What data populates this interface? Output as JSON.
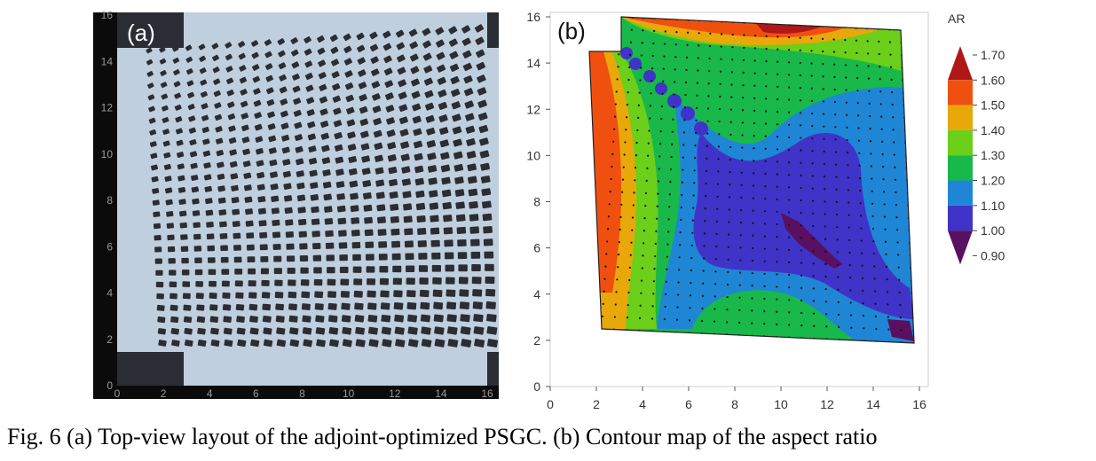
{
  "caption": "Fig. 6 (a) Top-view layout of the adjoint-optimized PSGC. (b) Contour map of the aspect ratio",
  "panel_a": {
    "label": "(a)",
    "x_ticks": [
      "0",
      "2",
      "4",
      "6",
      "8",
      "10",
      "12",
      "14",
      "16"
    ],
    "y_ticks": [
      "0",
      "2",
      "4",
      "6",
      "8",
      "10",
      "12",
      "14",
      "16"
    ],
    "colors": {
      "frame": "#0b0b0b",
      "background": "#bfcfdd",
      "pillar": "#2a2d33"
    }
  },
  "panel_b": {
    "label": "(b)",
    "x_ticks": [
      "0",
      "2",
      "4",
      "6",
      "8",
      "10",
      "12",
      "14",
      "16"
    ],
    "y_ticks": [
      "0",
      "2",
      "4",
      "6",
      "8",
      "10",
      "12",
      "14",
      "16"
    ],
    "colorbar": {
      "title": "AR",
      "levels": [
        {
          "label": "1.70",
          "color": "#b01818"
        },
        {
          "label": "1.60",
          "color": "#f0500f"
        },
        {
          "label": "1.50",
          "color": "#e8a80a"
        },
        {
          "label": "1.40",
          "color": "#6ccf1a"
        },
        {
          "label": "1.30",
          "color": "#19b84a"
        },
        {
          "label": "1.20",
          "color": "#1f86d6"
        },
        {
          "label": "1.10",
          "color": "#4034c8"
        },
        {
          "label": "1.00",
          "color": "#5a1060"
        },
        {
          "label": "0.90",
          "color": "#5a1060"
        }
      ]
    }
  },
  "chart_data": {
    "type": "heatmap",
    "title": "",
    "xlabel": "",
    "ylabel": "",
    "xlim": [
      0,
      16
    ],
    "ylim": [
      0,
      16
    ],
    "colorbar_title": "AR",
    "colorbar_range": [
      0.9,
      1.7
    ],
    "grid": false
  }
}
